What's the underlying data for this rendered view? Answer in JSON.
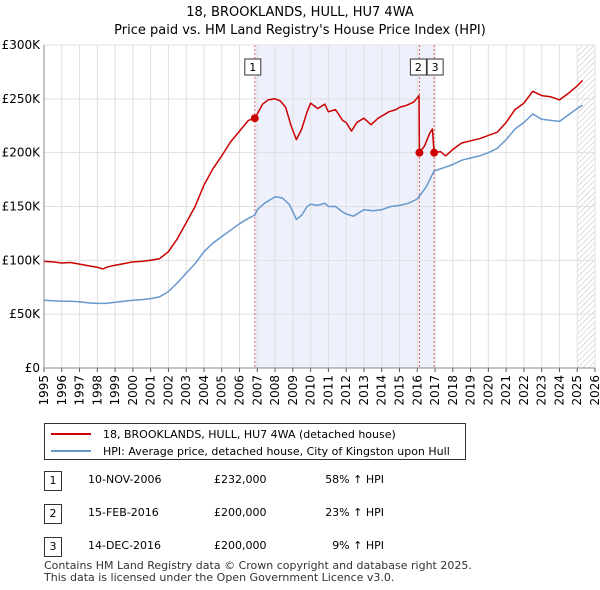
{
  "title_line1": "18, BROOKLANDS, HULL, HU7 4WA",
  "title_line2": "Price paid vs. HM Land Registry's House Price Index (HPI)",
  "chart_data": {
    "type": "line",
    "xlim": [
      1995,
      2026
    ],
    "ylim": [
      0,
      300000
    ],
    "y_ticks": [
      0,
      50000,
      100000,
      150000,
      200000,
      250000,
      300000
    ],
    "y_tick_labels": [
      "£0",
      "£50K",
      "£100K",
      "£150K",
      "£200K",
      "£250K",
      "£300K"
    ],
    "x_ticks": [
      1995,
      1996,
      1997,
      1998,
      1999,
      2000,
      2001,
      2002,
      2003,
      2004,
      2005,
      2006,
      2007,
      2008,
      2009,
      2010,
      2011,
      2012,
      2013,
      2014,
      2015,
      2016,
      2017,
      2018,
      2019,
      2020,
      2021,
      2022,
      2023,
      2024,
      2025,
      2026
    ],
    "ownership_shade": {
      "from": 2006.86,
      "to": 2016.95
    },
    "hatch_from": 2025.0,
    "series": [
      {
        "name": "18, BROOKLANDS, HULL, HU7 4WA (detached house)",
        "color": "#cc0000",
        "points": [
          [
            1995.0,
            99000
          ],
          [
            1995.5,
            98500
          ],
          [
            1996.0,
            97500
          ],
          [
            1996.5,
            98000
          ],
          [
            1997.0,
            96500
          ],
          [
            1997.5,
            95000
          ],
          [
            1998.0,
            93500
          ],
          [
            1998.3,
            92000
          ],
          [
            1998.6,
            94000
          ],
          [
            1999.0,
            95500
          ],
          [
            1999.5,
            97000
          ],
          [
            2000.0,
            98500
          ],
          [
            2000.5,
            99000
          ],
          [
            2001.0,
            100000
          ],
          [
            2001.5,
            101500
          ],
          [
            2002.0,
            108000
          ],
          [
            2002.5,
            120000
          ],
          [
            2003.0,
            135000
          ],
          [
            2003.5,
            150000
          ],
          [
            2004.0,
            170000
          ],
          [
            2004.5,
            185000
          ],
          [
            2005.0,
            197000
          ],
          [
            2005.5,
            210000
          ],
          [
            2006.0,
            220000
          ],
          [
            2006.5,
            230000
          ],
          [
            2006.86,
            232000
          ],
          [
            2007.0,
            236000
          ],
          [
            2007.3,
            245000
          ],
          [
            2007.6,
            249000
          ],
          [
            2008.0,
            250000
          ],
          [
            2008.3,
            248000
          ],
          [
            2008.6,
            242000
          ],
          [
            2008.9,
            225000
          ],
          [
            2009.2,
            212000
          ],
          [
            2009.5,
            222000
          ],
          [
            2009.8,
            238000
          ],
          [
            2010.0,
            246000
          ],
          [
            2010.4,
            241000
          ],
          [
            2010.8,
            245000
          ],
          [
            2011.0,
            238000
          ],
          [
            2011.4,
            240000
          ],
          [
            2011.8,
            230000
          ],
          [
            2012.0,
            228000
          ],
          [
            2012.3,
            220000
          ],
          [
            2012.6,
            228000
          ],
          [
            2013.0,
            232000
          ],
          [
            2013.4,
            226000
          ],
          [
            2013.8,
            232000
          ],
          [
            2014.0,
            234000
          ],
          [
            2014.4,
            238000
          ],
          [
            2014.8,
            240000
          ],
          [
            2015.0,
            242000
          ],
          [
            2015.4,
            244000
          ],
          [
            2015.8,
            247000
          ],
          [
            2016.0,
            251000
          ],
          [
            2016.1,
            253000
          ],
          [
            2016.12,
            200000
          ],
          [
            2016.4,
            206000
          ],
          [
            2016.7,
            218000
          ],
          [
            2016.85,
            222000
          ],
          [
            2016.95,
            200000
          ],
          [
            2017.3,
            201000
          ],
          [
            2017.6,
            197000
          ],
          [
            2018.0,
            203000
          ],
          [
            2018.5,
            209000
          ],
          [
            2019.0,
            211000
          ],
          [
            2019.5,
            213000
          ],
          [
            2020.0,
            216000
          ],
          [
            2020.5,
            219000
          ],
          [
            2021.0,
            228000
          ],
          [
            2021.5,
            240000
          ],
          [
            2022.0,
            246000
          ],
          [
            2022.5,
            257000
          ],
          [
            2023.0,
            253000
          ],
          [
            2023.5,
            252000
          ],
          [
            2024.0,
            249000
          ],
          [
            2024.5,
            255000
          ],
          [
            2025.0,
            262000
          ],
          [
            2025.3,
            267000
          ]
        ]
      },
      {
        "name": "HPI: Average price, detached house, City of Kingston upon Hull",
        "color": "#6699cc",
        "points": [
          [
            1995.0,
            63000
          ],
          [
            1995.5,
            62500
          ],
          [
            1996.0,
            62000
          ],
          [
            1996.5,
            62000
          ],
          [
            1997.0,
            61500
          ],
          [
            1997.5,
            60500
          ],
          [
            1998.0,
            60000
          ],
          [
            1998.5,
            60000
          ],
          [
            1999.0,
            61000
          ],
          [
            1999.5,
            62000
          ],
          [
            2000.0,
            63000
          ],
          [
            2000.5,
            63500
          ],
          [
            2001.0,
            64500
          ],
          [
            2001.5,
            66000
          ],
          [
            2002.0,
            71000
          ],
          [
            2002.5,
            79000
          ],
          [
            2003.0,
            88000
          ],
          [
            2003.5,
            97000
          ],
          [
            2004.0,
            108000
          ],
          [
            2004.5,
            116000
          ],
          [
            2005.0,
            122000
          ],
          [
            2005.5,
            128000
          ],
          [
            2006.0,
            134000
          ],
          [
            2006.5,
            139000
          ],
          [
            2006.86,
            142000
          ],
          [
            2007.0,
            147000
          ],
          [
            2007.4,
            153000
          ],
          [
            2007.8,
            157000
          ],
          [
            2008.0,
            159000
          ],
          [
            2008.4,
            158000
          ],
          [
            2008.8,
            152000
          ],
          [
            2009.2,
            138000
          ],
          [
            2009.5,
            142000
          ],
          [
            2009.8,
            150000
          ],
          [
            2010.0,
            152000
          ],
          [
            2010.4,
            151000
          ],
          [
            2010.8,
            153000
          ],
          [
            2011.0,
            150000
          ],
          [
            2011.4,
            150000
          ],
          [
            2011.8,
            145000
          ],
          [
            2012.0,
            143000
          ],
          [
            2012.4,
            141000
          ],
          [
            2012.8,
            145000
          ],
          [
            2013.0,
            147000
          ],
          [
            2013.5,
            146000
          ],
          [
            2014.0,
            147000
          ],
          [
            2014.5,
            150000
          ],
          [
            2015.0,
            151000
          ],
          [
            2015.5,
            153000
          ],
          [
            2016.0,
            157000
          ],
          [
            2016.5,
            168000
          ],
          [
            2016.95,
            183000
          ],
          [
            2017.5,
            186000
          ],
          [
            2018.0,
            189000
          ],
          [
            2018.5,
            193000
          ],
          [
            2019.0,
            195000
          ],
          [
            2019.5,
            197000
          ],
          [
            2020.0,
            200000
          ],
          [
            2020.5,
            204000
          ],
          [
            2021.0,
            212000
          ],
          [
            2021.5,
            222000
          ],
          [
            2022.0,
            228000
          ],
          [
            2022.5,
            236000
          ],
          [
            2023.0,
            231000
          ],
          [
            2023.5,
            230000
          ],
          [
            2024.0,
            229000
          ],
          [
            2024.5,
            235000
          ],
          [
            2025.0,
            241000
          ],
          [
            2025.3,
            244000
          ]
        ]
      }
    ],
    "transactions": [
      {
        "label": "1",
        "year": 2006.86,
        "price": 232000
      },
      {
        "label": "2",
        "year": 2016.12,
        "price": 200000
      },
      {
        "label": "3",
        "year": 2016.95,
        "price": 200000
      }
    ]
  },
  "legend": {
    "red_label": "18, BROOKLANDS, HULL, HU7 4WA (detached house)",
    "blue_label": "HPI: Average price, detached house, City of Kingston upon Hull"
  },
  "table": [
    {
      "num": "1",
      "date": "10-NOV-2006",
      "price": "£232,000",
      "hpi": "58% ↑ HPI"
    },
    {
      "num": "2",
      "date": "15-FEB-2016",
      "price": "£200,000",
      "hpi": "23% ↑ HPI"
    },
    {
      "num": "3",
      "date": "14-DEC-2016",
      "price": "£200,000",
      "hpi": "9% ↑ HPI"
    }
  ],
  "footer_line1": "Contains HM Land Registry data © Crown copyright and database right 2025.",
  "footer_line2": "This data is licensed under the Open Government Licence v3.0."
}
